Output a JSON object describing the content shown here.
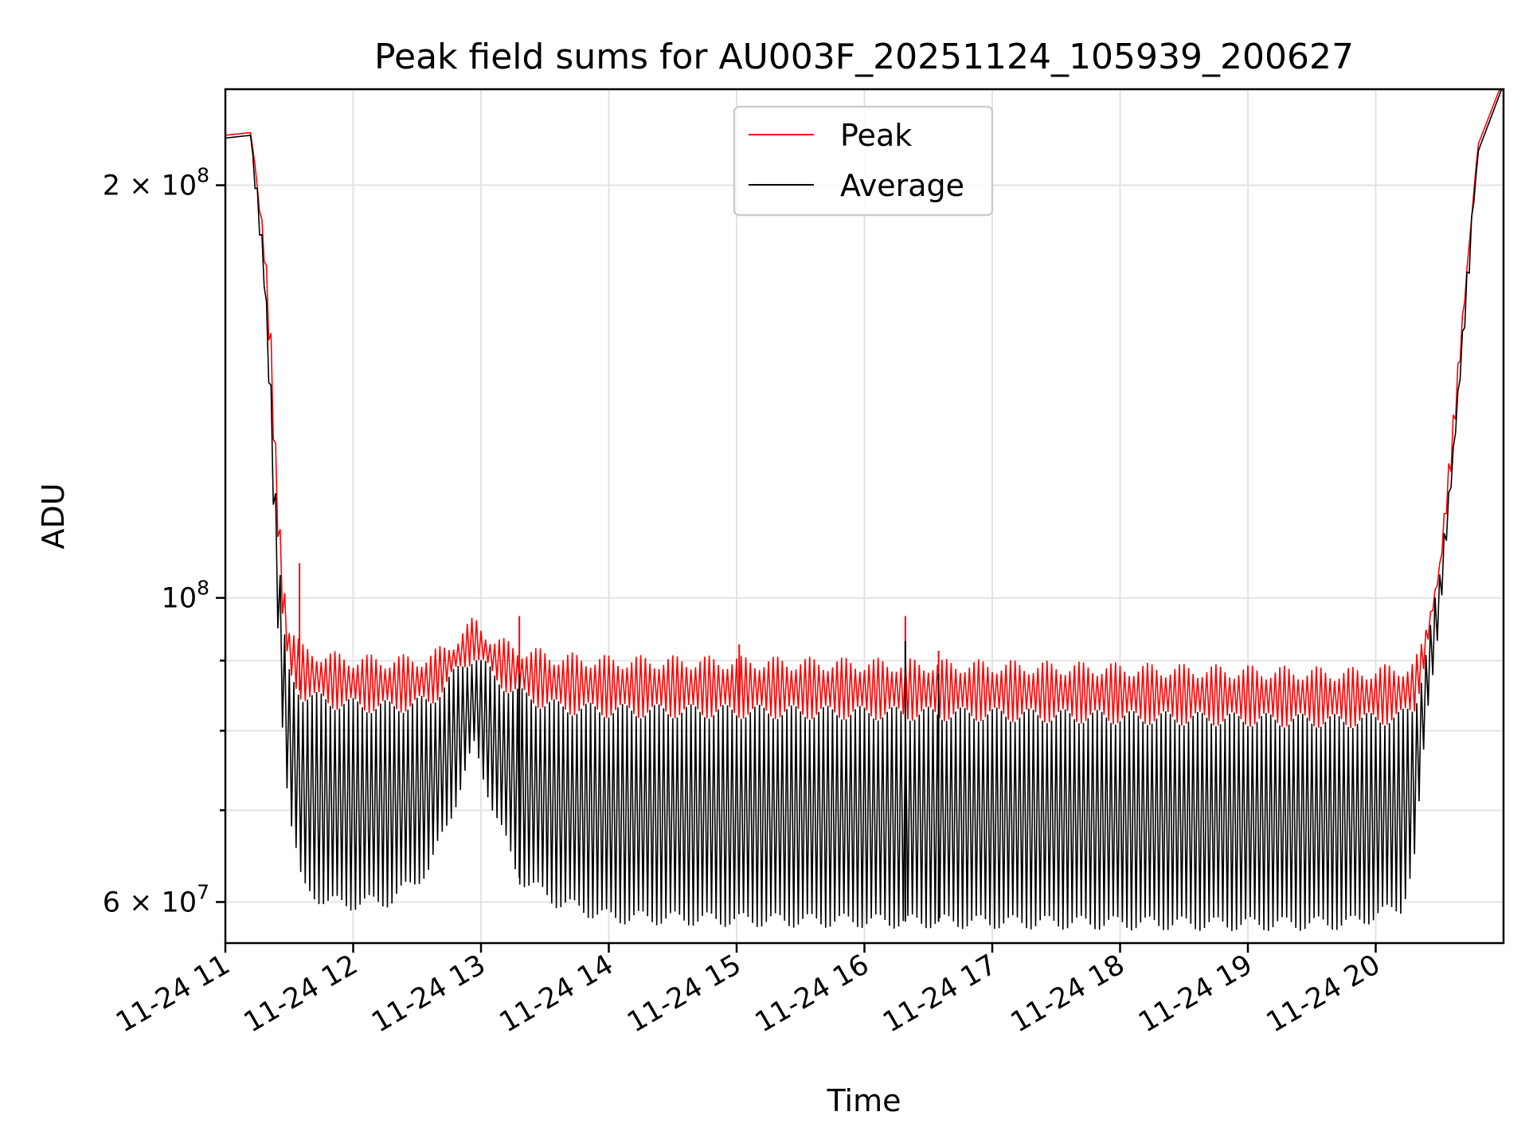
{
  "chart_data": {
    "type": "line",
    "title": "Peak field sums for AU003F_20251124_105939_200627",
    "xlabel": "Time",
    "ylabel": "ADU",
    "yscale": "log",
    "grid": true,
    "legend_position": "top-center",
    "xlim_hours": [
      11.0,
      21.0
    ],
    "ylim": [
      56000000,
      235000000
    ],
    "x_ticks": [
      {
        "hour": 11,
        "label": "11-24 11"
      },
      {
        "hour": 12,
        "label": "11-24 12"
      },
      {
        "hour": 13,
        "label": "11-24 13"
      },
      {
        "hour": 14,
        "label": "11-24 14"
      },
      {
        "hour": 15,
        "label": "11-24 15"
      },
      {
        "hour": 16,
        "label": "11-24 16"
      },
      {
        "hour": 17,
        "label": "11-24 17"
      },
      {
        "hour": 18,
        "label": "11-24 18"
      },
      {
        "hour": 19,
        "label": "11-24 19"
      },
      {
        "hour": 20,
        "label": "11-24 20"
      }
    ],
    "y_ticks": [
      {
        "value": 60000000,
        "base": "6 × 10",
        "exp": "7"
      },
      {
        "value": 100000000,
        "base": "10",
        "exp": "8"
      },
      {
        "value": 200000000,
        "base": "2 × 10",
        "exp": "8"
      }
    ],
    "y_minor_ticks": [
      70000000,
      80000000,
      90000000
    ],
    "series": [
      {
        "name": "Peak",
        "color": "#ff0000",
        "envelope_hours": [
          11.0,
          11.2,
          11.3,
          11.35,
          11.4,
          11.45,
          11.5,
          11.6,
          11.8,
          12.0,
          12.3,
          12.6,
          12.8,
          12.95,
          13.1,
          13.3,
          13.6,
          14.0,
          15.0,
          16.0,
          17.0,
          18.0,
          19.0,
          19.8,
          20.2,
          20.3,
          20.35,
          20.4,
          20.5,
          20.6,
          20.7,
          20.8,
          21.0
        ],
        "envelope_top": [
          218000000,
          219000000,
          183000000,
          160000000,
          125000000,
          105000000,
          95000000,
          91500000,
          90500000,
          90000000,
          89800000,
          90200000,
          93000000,
          96000000,
          93000000,
          91500000,
          90300000,
          89800000,
          89700000,
          89400000,
          89100000,
          88700000,
          88300000,
          88000000,
          88600000,
          89300000,
          91000000,
          95000000,
          107000000,
          132000000,
          170000000,
          215000000,
          240000000
        ],
        "envelope_bottom": [
          217000000,
          218000000,
          180000000,
          150000000,
          115000000,
          95000000,
          88000000,
          85000000,
          84000000,
          83500000,
          83200000,
          84000000,
          88000000,
          91000000,
          87500000,
          85000000,
          83200000,
          82700000,
          82600000,
          82400000,
          82200000,
          81800000,
          81500000,
          81300000,
          81900000,
          83000000,
          87000000,
          92000000,
          103000000,
          128000000,
          165000000,
          213000000,
          238000000
        ],
        "spikes": [
          {
            "hour": 11.58,
            "value": 106000000
          },
          {
            "hour": 13.3,
            "value": 97000000
          },
          {
            "hour": 15.02,
            "value": 92500000
          },
          {
            "hour": 16.32,
            "value": 97000000
          },
          {
            "hour": 16.58,
            "value": 91500000
          }
        ]
      },
      {
        "name": "Average",
        "color": "#000000",
        "envelope_hours": [
          11.0,
          11.2,
          11.3,
          11.35,
          11.4,
          11.45,
          11.5,
          11.6,
          11.8,
          12.0,
          12.3,
          12.6,
          12.8,
          12.95,
          13.1,
          13.3,
          13.6,
          14.0,
          15.0,
          16.0,
          17.0,
          18.0,
          19.0,
          19.8,
          20.2,
          20.3,
          20.35,
          20.4,
          20.5,
          20.6,
          20.7,
          20.8,
          21.0
        ],
        "envelope_top": [
          217000000,
          218000000,
          180000000,
          150000000,
          115000000,
          95000000,
          88000000,
          85000000,
          84000000,
          83500000,
          83200000,
          84000000,
          88000000,
          91000000,
          87500000,
          85000000,
          83200000,
          82700000,
          82600000,
          82400000,
          82200000,
          81800000,
          81500000,
          81300000,
          81900000,
          83000000,
          87000000,
          92000000,
          103000000,
          128000000,
          165000000,
          213000000,
          238000000
        ],
        "envelope_bottom": [
          216000000,
          217000000,
          170000000,
          135000000,
          100000000,
          80000000,
          70000000,
          61500000,
          60000000,
          59800000,
          60200000,
          63500000,
          71000000,
          78000000,
          70000000,
          62500000,
          60000000,
          58500000,
          58200000,
          58100000,
          58000000,
          57900000,
          57800000,
          57900000,
          59500000,
          64000000,
          72000000,
          82000000,
          97000000,
          122000000,
          160000000,
          210000000,
          236000000
        ],
        "spikes": [
          {
            "hour": 16.32,
            "value": 93000000
          },
          {
            "hour": 16.58,
            "value": 88000000
          },
          {
            "hour": 13.3,
            "value": 88000000
          }
        ]
      }
    ],
    "approx_samples": 280
  }
}
